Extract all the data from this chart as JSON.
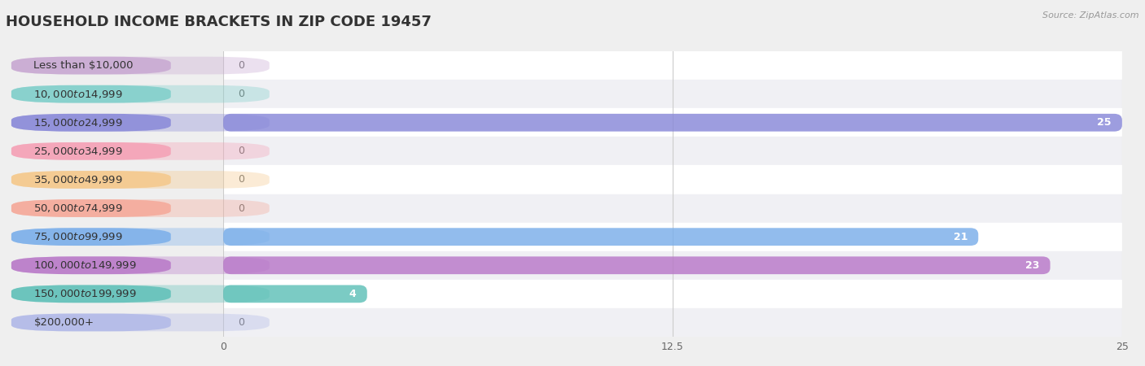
{
  "title": "HOUSEHOLD INCOME BRACKETS IN ZIP CODE 19457",
  "source": "Source: ZipAtlas.com",
  "categories": [
    "Less than $10,000",
    "$10,000 to $14,999",
    "$15,000 to $24,999",
    "$25,000 to $34,999",
    "$35,000 to $49,999",
    "$50,000 to $74,999",
    "$75,000 to $99,999",
    "$100,000 to $149,999",
    "$150,000 to $199,999",
    "$200,000+"
  ],
  "values": [
    0,
    0,
    25,
    0,
    0,
    0,
    21,
    23,
    4,
    0
  ],
  "bar_colors": [
    "#c8a8d2",
    "#7ececa",
    "#8888d8",
    "#f5a0b5",
    "#f5c88a",
    "#f5a898",
    "#7aaeea",
    "#b878c8",
    "#5ec0b8",
    "#b0b8e8"
  ],
  "xlim": [
    0,
    25
  ],
  "xticks": [
    0,
    12.5,
    25
  ],
  "bg_color": "#efefef",
  "row_color_even": "#ffffff",
  "row_color_odd": "#f0f0f4",
  "title_fontsize": 13,
  "label_fontsize": 9.5,
  "value_fontsize": 9,
  "bar_height": 0.62,
  "label_pill_alpha": 0.35,
  "bar_alpha": 0.82
}
